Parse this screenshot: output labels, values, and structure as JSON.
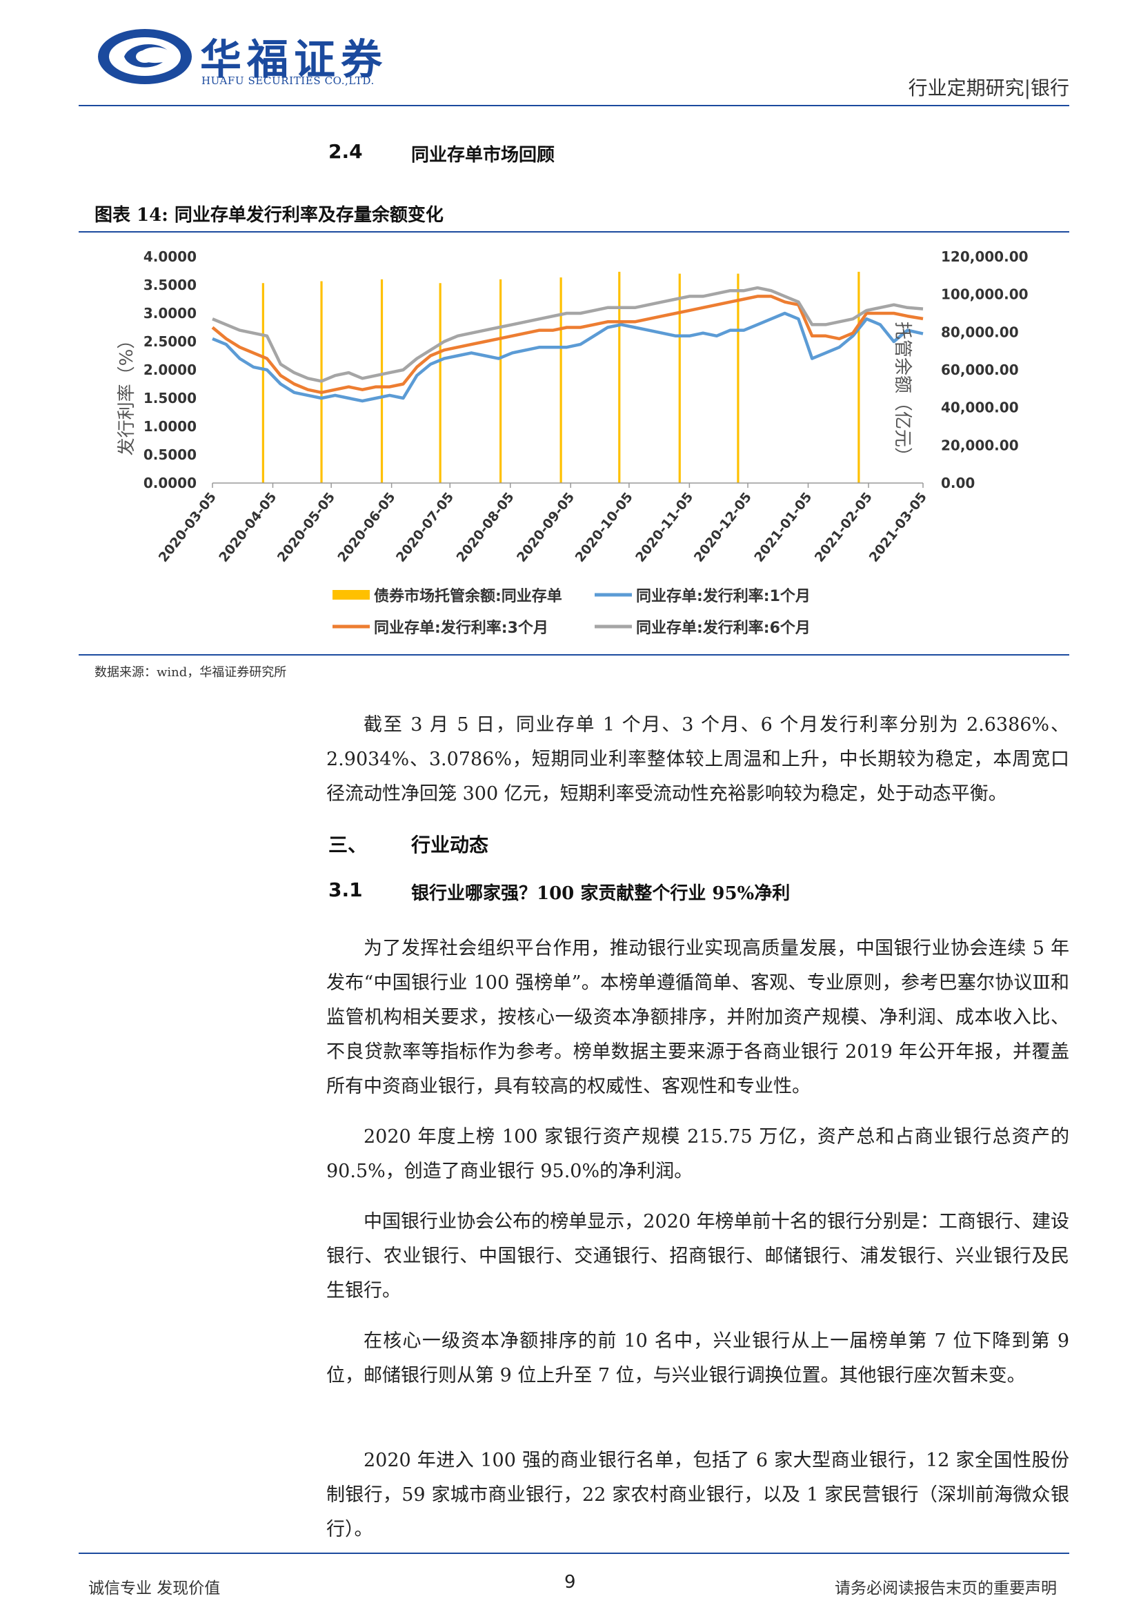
{
  "header": {
    "brand_cn": "华福证券",
    "brand_en": "HUAFU SECURITIES CO.,LTD.",
    "report_type": "行业定期研究|银行"
  },
  "section_2_4": {
    "num": "2.4",
    "title": "同业存单市场回顾"
  },
  "figure": {
    "caption": "图表 14:  同业存单发行利率及存量余额变化",
    "source": "数据来源：wind，华福证券研究所"
  },
  "chart_data": {
    "type": "line",
    "title": "",
    "ylabel_left": "发行利率（%）",
    "ylabel_right": "托管余额（亿元）",
    "y_left_ticks": [
      "4.0000",
      "3.5000",
      "3.0000",
      "2.5000",
      "2.0000",
      "1.5000",
      "1.0000",
      "0.5000",
      "0.0000"
    ],
    "y_right_ticks": [
      "120,000.00",
      "100,000.00",
      "80,000.00",
      "60,000.00",
      "40,000.00",
      "20,000.00",
      "0.00"
    ],
    "ylim_left": [
      0,
      4
    ],
    "ylim_right": [
      0,
      120000
    ],
    "x_ticks": [
      "2020-03-05",
      "2020-04-05",
      "2020-05-05",
      "2020-06-05",
      "2020-07-05",
      "2020-08-05",
      "2020-09-05",
      "2020-10-05",
      "2020-11-05",
      "2020-12-05",
      "2021-01-05",
      "2021-02-05",
      "2021-03-05"
    ],
    "xlim": [
      "2020-03-05",
      "2021-03-05"
    ],
    "legend_position": "bottom",
    "legend": [
      "债券市场托管余额:同业存单",
      "同业存单:发行利率:1个月",
      "同业存单:发行利率:3个月",
      "同业存单:发行利率:6个月"
    ],
    "balance_bars": {
      "name": "债券市场托管余额:同业存单",
      "axis": "right",
      "color": "#ffc000",
      "dates": [
        "2020-03-31",
        "2020-04-30",
        "2020-05-31",
        "2020-06-30",
        "2020-07-31",
        "2020-08-31",
        "2020-09-30",
        "2020-10-31",
        "2020-11-30",
        "2021-01-31"
      ],
      "values": [
        106000,
        107000,
        108000,
        106000,
        108000,
        109000,
        112000,
        111000,
        111000,
        112000
      ]
    },
    "series": [
      {
        "name": "同业存单:发行利率:1个月",
        "axis": "left",
        "color": "#5b9bd5",
        "points": [
          [
            "2020-03-05",
            2.55
          ],
          [
            "2020-03-12",
            2.45
          ],
          [
            "2020-03-19",
            2.2
          ],
          [
            "2020-03-26",
            2.05
          ],
          [
            "2020-04-02",
            2.0
          ],
          [
            "2020-04-09",
            1.75
          ],
          [
            "2020-04-16",
            1.6
          ],
          [
            "2020-04-23",
            1.55
          ],
          [
            "2020-04-30",
            1.5
          ],
          [
            "2020-05-07",
            1.55
          ],
          [
            "2020-05-14",
            1.5
          ],
          [
            "2020-05-21",
            1.45
          ],
          [
            "2020-05-28",
            1.5
          ],
          [
            "2020-06-04",
            1.55
          ],
          [
            "2020-06-11",
            1.5
          ],
          [
            "2020-06-18",
            1.9
          ],
          [
            "2020-06-25",
            2.1
          ],
          [
            "2020-07-02",
            2.2
          ],
          [
            "2020-07-09",
            2.25
          ],
          [
            "2020-07-16",
            2.3
          ],
          [
            "2020-07-23",
            2.25
          ],
          [
            "2020-07-30",
            2.2
          ],
          [
            "2020-08-06",
            2.3
          ],
          [
            "2020-08-13",
            2.35
          ],
          [
            "2020-08-20",
            2.4
          ],
          [
            "2020-08-27",
            2.4
          ],
          [
            "2020-09-03",
            2.4
          ],
          [
            "2020-09-10",
            2.45
          ],
          [
            "2020-09-17",
            2.6
          ],
          [
            "2020-09-24",
            2.75
          ],
          [
            "2020-10-01",
            2.8
          ],
          [
            "2020-10-08",
            2.75
          ],
          [
            "2020-10-15",
            2.7
          ],
          [
            "2020-10-22",
            2.65
          ],
          [
            "2020-10-29",
            2.6
          ],
          [
            "2020-11-05",
            2.6
          ],
          [
            "2020-11-12",
            2.65
          ],
          [
            "2020-11-19",
            2.6
          ],
          [
            "2020-11-26",
            2.7
          ],
          [
            "2020-12-03",
            2.7
          ],
          [
            "2020-12-10",
            2.8
          ],
          [
            "2020-12-17",
            2.9
          ],
          [
            "2020-12-24",
            3.0
          ],
          [
            "2020-12-31",
            2.9
          ],
          [
            "2021-01-07",
            2.2
          ],
          [
            "2021-01-14",
            2.3
          ],
          [
            "2021-01-21",
            2.4
          ],
          [
            "2021-01-28",
            2.6
          ],
          [
            "2021-02-04",
            2.9
          ],
          [
            "2021-02-11",
            2.8
          ],
          [
            "2021-02-18",
            2.5
          ],
          [
            "2021-02-25",
            2.7
          ],
          [
            "2021-03-05",
            2.6386
          ]
        ]
      },
      {
        "name": "同业存单:发行利率:3个月",
        "axis": "left",
        "color": "#ed7d31",
        "points": [
          [
            "2020-03-05",
            2.75
          ],
          [
            "2020-03-12",
            2.55
          ],
          [
            "2020-03-19",
            2.4
          ],
          [
            "2020-03-26",
            2.3
          ],
          [
            "2020-04-02",
            2.2
          ],
          [
            "2020-04-09",
            1.9
          ],
          [
            "2020-04-16",
            1.75
          ],
          [
            "2020-04-23",
            1.65
          ],
          [
            "2020-04-30",
            1.6
          ],
          [
            "2020-05-07",
            1.65
          ],
          [
            "2020-05-14",
            1.7
          ],
          [
            "2020-05-21",
            1.65
          ],
          [
            "2020-05-28",
            1.7
          ],
          [
            "2020-06-04",
            1.7
          ],
          [
            "2020-06-11",
            1.75
          ],
          [
            "2020-06-18",
            2.05
          ],
          [
            "2020-06-25",
            2.25
          ],
          [
            "2020-07-02",
            2.35
          ],
          [
            "2020-07-09",
            2.4
          ],
          [
            "2020-07-16",
            2.45
          ],
          [
            "2020-07-23",
            2.5
          ],
          [
            "2020-07-30",
            2.55
          ],
          [
            "2020-08-06",
            2.6
          ],
          [
            "2020-08-13",
            2.65
          ],
          [
            "2020-08-20",
            2.7
          ],
          [
            "2020-08-27",
            2.7
          ],
          [
            "2020-09-03",
            2.75
          ],
          [
            "2020-09-10",
            2.75
          ],
          [
            "2020-09-17",
            2.8
          ],
          [
            "2020-09-24",
            2.85
          ],
          [
            "2020-10-01",
            2.85
          ],
          [
            "2020-10-08",
            2.85
          ],
          [
            "2020-10-15",
            2.9
          ],
          [
            "2020-10-22",
            2.95
          ],
          [
            "2020-10-29",
            3.0
          ],
          [
            "2020-11-05",
            3.05
          ],
          [
            "2020-11-12",
            3.1
          ],
          [
            "2020-11-19",
            3.15
          ],
          [
            "2020-11-26",
            3.2
          ],
          [
            "2020-12-03",
            3.25
          ],
          [
            "2020-12-10",
            3.3
          ],
          [
            "2020-12-17",
            3.3
          ],
          [
            "2020-12-24",
            3.2
          ],
          [
            "2020-12-31",
            3.15
          ],
          [
            "2021-01-07",
            2.6
          ],
          [
            "2021-01-14",
            2.6
          ],
          [
            "2021-01-21",
            2.55
          ],
          [
            "2021-01-28",
            2.65
          ],
          [
            "2021-02-04",
            3.0
          ],
          [
            "2021-02-11",
            3.0
          ],
          [
            "2021-02-18",
            3.0
          ],
          [
            "2021-02-25",
            2.95
          ],
          [
            "2021-03-05",
            2.9034
          ]
        ]
      },
      {
        "name": "同业存单:发行利率:6个月",
        "axis": "left",
        "color": "#a5a5a5",
        "points": [
          [
            "2020-03-05",
            2.9
          ],
          [
            "2020-03-12",
            2.8
          ],
          [
            "2020-03-19",
            2.7
          ],
          [
            "2020-03-26",
            2.65
          ],
          [
            "2020-04-02",
            2.6
          ],
          [
            "2020-04-09",
            2.1
          ],
          [
            "2020-04-16",
            1.95
          ],
          [
            "2020-04-23",
            1.85
          ],
          [
            "2020-04-30",
            1.8
          ],
          [
            "2020-05-07",
            1.9
          ],
          [
            "2020-05-14",
            1.95
          ],
          [
            "2020-05-21",
            1.85
          ],
          [
            "2020-05-28",
            1.9
          ],
          [
            "2020-06-04",
            1.95
          ],
          [
            "2020-06-11",
            2.0
          ],
          [
            "2020-06-18",
            2.2
          ],
          [
            "2020-06-25",
            2.35
          ],
          [
            "2020-07-02",
            2.5
          ],
          [
            "2020-07-09",
            2.6
          ],
          [
            "2020-07-16",
            2.65
          ],
          [
            "2020-07-23",
            2.7
          ],
          [
            "2020-07-30",
            2.75
          ],
          [
            "2020-08-06",
            2.8
          ],
          [
            "2020-08-13",
            2.85
          ],
          [
            "2020-08-20",
            2.9
          ],
          [
            "2020-08-27",
            2.95
          ],
          [
            "2020-09-03",
            3.0
          ],
          [
            "2020-09-10",
            3.0
          ],
          [
            "2020-09-17",
            3.05
          ],
          [
            "2020-09-24",
            3.1
          ],
          [
            "2020-10-01",
            3.1
          ],
          [
            "2020-10-08",
            3.1
          ],
          [
            "2020-10-15",
            3.15
          ],
          [
            "2020-10-22",
            3.2
          ],
          [
            "2020-10-29",
            3.25
          ],
          [
            "2020-11-05",
            3.3
          ],
          [
            "2020-11-12",
            3.3
          ],
          [
            "2020-11-19",
            3.35
          ],
          [
            "2020-11-26",
            3.4
          ],
          [
            "2020-12-03",
            3.4
          ],
          [
            "2020-12-10",
            3.45
          ],
          [
            "2020-12-17",
            3.4
          ],
          [
            "2020-12-24",
            3.3
          ],
          [
            "2020-12-31",
            3.2
          ],
          [
            "2021-01-07",
            2.8
          ],
          [
            "2021-01-14",
            2.8
          ],
          [
            "2021-01-21",
            2.85
          ],
          [
            "2021-01-28",
            2.9
          ],
          [
            "2021-02-04",
            3.05
          ],
          [
            "2021-02-11",
            3.1
          ],
          [
            "2021-02-18",
            3.15
          ],
          [
            "2021-02-25",
            3.1
          ],
          [
            "2021-03-05",
            3.0786
          ]
        ]
      }
    ]
  },
  "body_para_1": "截至 3 月 5 日，同业存单 1 个月、3 个月、6 个月发行利率分别为 2.6386%、2.9034%、3.0786%，短期同业利率整体较上周温和上升，中长期较为稳定，本周宽口径流动性净回笼 300 亿元，短期利率受流动性充裕影响较为稳定，处于动态平衡。",
  "section_3": {
    "num": "三、",
    "title": "行业动态"
  },
  "section_3_1": {
    "num": "3.1",
    "title": "银行业哪家强？100 家贡献整个行业 95%净利"
  },
  "body_para_2": "为了发挥社会组织平台作用，推动银行业实现高质量发展，中国银行业协会连续 5 年发布“中国银行业 100 强榜单”。本榜单遵循简单、客观、专业原则，参考巴塞尔协议Ⅲ和监管机构相关要求，按核心一级资本净额排序，并附加资产规模、净利润、成本收入比、不良贷款率等指标作为参考。榜单数据主要来源于各商业银行 2019 年公开年报，并覆盖所有中资商业银行，具有较高的权威性、客观性和专业性。",
  "body_para_3": "2020 年度上榜 100 家银行资产规模 215.75 万亿，资产总和占商业银行总资产的 90.5%，创造了商业银行 95.0%的净利润。",
  "body_para_4": "中国银行业协会公布的榜单显示，2020 年榜单前十名的银行分别是：工商银行、建设银行、农业银行、中国银行、交通银行、招商银行、邮储银行、浦发银行、兴业银行及民生银行。",
  "body_para_5": "在核心一级资本净额排序的前 10 名中，兴业银行从上一届榜单第 7 位下降到第 9 位，邮储银行则从第 9 位上升至 7 位，与兴业银行调换位置。其他银行座次暂未变。",
  "body_para_6": "2020 年进入 100 强的商业银行名单，包括了 6 家大型商业银行，12 家全国性股份制银行，59 家城市商业银行，22 家农村商业银行，以及 1 家民营银行（深圳前海微众银行）。",
  "footer": {
    "left": "诚信专业  发现价值",
    "page": "9",
    "right": "请务必阅读报告末页的重要声明"
  }
}
